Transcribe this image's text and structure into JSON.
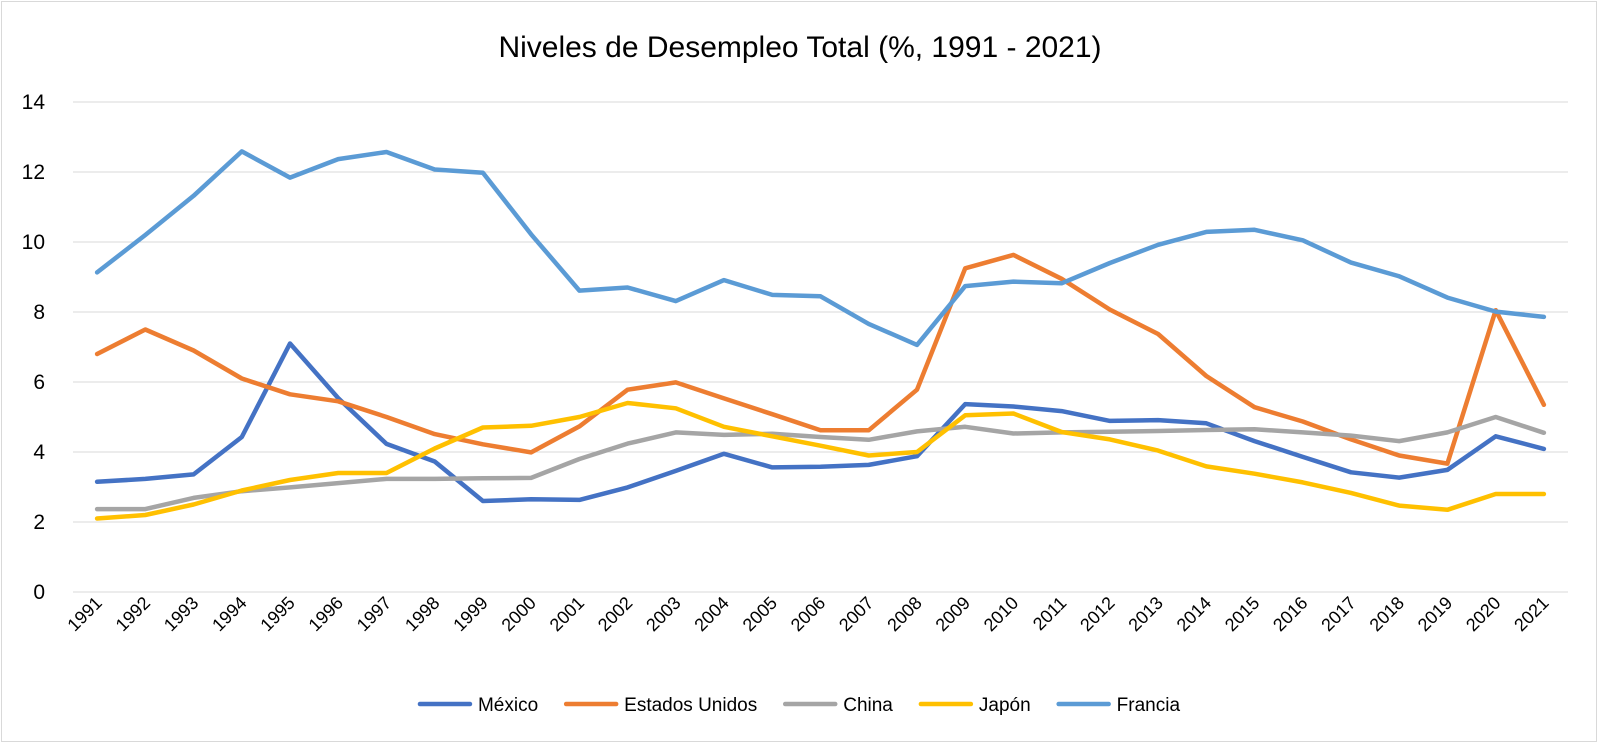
{
  "chart_data": {
    "type": "line",
    "title": "Niveles de Desempleo Total (%, 1991 - 2021)",
    "xlabel": "",
    "ylabel": "",
    "ylim": [
      0,
      14
    ],
    "yticks": [
      "0",
      "2",
      "4",
      "6",
      "8",
      "10",
      "12",
      "14"
    ],
    "grid": true,
    "legend_position": "bottom",
    "categories": [
      "1991",
      "1992",
      "1993",
      "1994",
      "1995",
      "1996",
      "1997",
      "1998",
      "1999",
      "2000",
      "2001",
      "2002",
      "2003",
      "2004",
      "2005",
      "2006",
      "2007",
      "2008",
      "2009",
      "2010",
      "2011",
      "2012",
      "2013",
      "2014",
      "2015",
      "2016",
      "2017",
      "2018",
      "2019",
      "2020",
      "2021"
    ],
    "series": [
      {
        "name": "México",
        "color": "#4472c4",
        "values": [
          3.15,
          3.23,
          3.36,
          4.43,
          7.1,
          5.54,
          4.23,
          3.73,
          2.6,
          2.65,
          2.63,
          2.99,
          3.46,
          3.95,
          3.56,
          3.58,
          3.63,
          3.88,
          5.37,
          5.3,
          5.17,
          4.89,
          4.91,
          4.82,
          4.31,
          3.86,
          3.42,
          3.27,
          3.49,
          4.45,
          4.09
        ]
      },
      {
        "name": "Estados Unidos",
        "color": "#ed7d31",
        "values": [
          6.8,
          7.5,
          6.9,
          6.1,
          5.65,
          5.45,
          5.0,
          4.51,
          4.22,
          3.99,
          4.73,
          5.78,
          5.99,
          5.53,
          5.08,
          4.62,
          4.62,
          5.78,
          9.25,
          9.63,
          8.95,
          8.07,
          7.37,
          6.17,
          5.28,
          4.87,
          4.36,
          3.9,
          3.67,
          8.05,
          5.35
        ]
      },
      {
        "name": "China",
        "color": "#a5a5a5",
        "values": [
          2.37,
          2.37,
          2.69,
          2.88,
          2.99,
          3.11,
          3.23,
          3.23,
          3.25,
          3.26,
          3.8,
          4.24,
          4.56,
          4.49,
          4.52,
          4.43,
          4.35,
          4.59,
          4.72,
          4.53,
          4.56,
          4.58,
          4.6,
          4.63,
          4.65,
          4.56,
          4.47,
          4.31,
          4.56,
          5.0,
          4.55
        ]
      },
      {
        "name": "Japón",
        "color": "#ffc000",
        "values": [
          2.1,
          2.2,
          2.5,
          2.9,
          3.2,
          3.4,
          3.4,
          4.1,
          4.7,
          4.75,
          5.0,
          5.4,
          5.25,
          4.72,
          4.45,
          4.18,
          3.9,
          4.0,
          5.05,
          5.1,
          4.57,
          4.36,
          4.04,
          3.59,
          3.38,
          3.13,
          2.83,
          2.47,
          2.35,
          2.8,
          2.8
        ]
      },
      {
        "name": "Francia",
        "color": "#5b9bd5",
        "values": [
          9.13,
          10.2,
          11.32,
          12.59,
          11.84,
          12.37,
          12.57,
          12.07,
          11.98,
          10.22,
          8.61,
          8.7,
          8.31,
          8.91,
          8.49,
          8.45,
          7.66,
          7.06,
          8.74,
          8.87,
          8.82,
          9.4,
          9.92,
          10.29,
          10.35,
          10.05,
          9.41,
          9.02,
          8.41,
          8.01,
          7.86
        ]
      }
    ]
  }
}
